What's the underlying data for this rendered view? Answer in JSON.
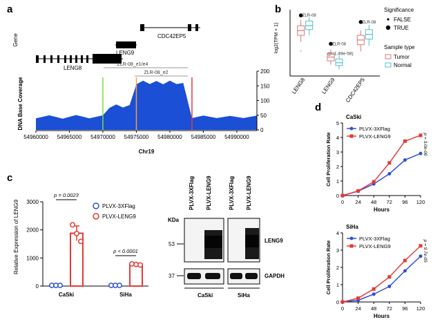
{
  "panels": {
    "a": {
      "letter": "a",
      "track_labels": {
        "gene": "Gene",
        "coverage": "DNA Base Coverage"
      },
      "genes": [
        {
          "name": "LENG8"
        },
        {
          "name": "LENG9"
        },
        {
          "name": "CDC42EP5"
        }
      ],
      "feature_labels": {
        "outer": "ZLR-08_e1/e4",
        "inner": "ZLR-08_e2"
      },
      "chart_data": {
        "type": "area",
        "xlabel": "Chr19",
        "ylabel": "DNA Base Coverage",
        "x_ticks": [
          54960000,
          54965000,
          54970000,
          54975000,
          54980000,
          54985000,
          54990000
        ],
        "x_tick_labels": [
          "54960000",
          "54965000",
          "54970000",
          "54975000",
          "54980000",
          "54985000",
          "54990000"
        ],
        "xlim": [
          54960000,
          54993000
        ],
        "ylim": [
          0,
          200
        ],
        "y_ticks": [
          0,
          50,
          100,
          150,
          200
        ],
        "y_tick_labels": [
          "0",
          "50",
          "100",
          "150",
          "200"
        ],
        "marker_lines": [
          {
            "x": 54970000,
            "color": "#7ddc3a"
          },
          {
            "x": 54975000,
            "color": "#f5a23c"
          },
          {
            "x": 54983300,
            "color": "#e23b3b"
          }
        ],
        "coverage": {
          "x": [
            54960000,
            54962000,
            54964000,
            54966000,
            54968000,
            54970000,
            54971000,
            54972000,
            54973000,
            54974000,
            54975000,
            54976000,
            54977000,
            54978000,
            54979000,
            54980000,
            54981000,
            54982000,
            54983300,
            54985000,
            54987000,
            54989000,
            54991000,
            54993000
          ],
          "y": [
            44,
            45,
            43,
            46,
            44,
            45,
            80,
            82,
            81,
            80,
            160,
            163,
            161,
            162,
            160,
            163,
            161,
            155,
            45,
            44,
            45,
            43,
            45,
            44
          ]
        },
        "fill_color": "#1a4fd6"
      }
    },
    "b": {
      "letter": "b",
      "chart_data": {
        "type": "box",
        "ylabel": "log2(TPM + 1)",
        "categories": [
          "LENG8",
          "LENG9",
          "CDC42EP5"
        ],
        "series": [
          {
            "name": "Tumor",
            "color": "#e57373",
            "boxes": [
              {
                "q1": 5.3,
                "med": 5.8,
                "q3": 6.3,
                "lo": 4.6,
                "hi": 6.9
              },
              {
                "q1": 2.6,
                "med": 3.0,
                "q3": 3.4,
                "lo": 2.2,
                "hi": 3.8
              },
              {
                "q1": 4.3,
                "med": 4.8,
                "q3": 5.3,
                "lo": 3.6,
                "hi": 5.8
              }
            ],
            "outliers": [
              {
                "cat": 0,
                "y": 3.6
              }
            ]
          },
          {
            "name": "Normal",
            "color": "#4cc3cc",
            "boxes": [
              {
                "q1": 5.9,
                "med": 6.3,
                "q3": 6.8,
                "lo": 5.3,
                "hi": 7.2
              },
              {
                "q1": 2.1,
                "med": 2.4,
                "q3": 2.8,
                "lo": 1.7,
                "hi": 3.2
              },
              {
                "q1": 4.9,
                "med": 5.4,
                "q3": 5.9,
                "lo": 4.2,
                "hi": 6.4
              }
            ],
            "outliers": []
          }
        ],
        "ylim": [
          1,
          8
        ],
        "significance_points": [
          {
            "cat": 0,
            "y": 7.4
          },
          {
            "cat": 1,
            "y": 4.4
          },
          {
            "cat": 2,
            "y": 6.7
          }
        ],
        "annotations": [
          {
            "cat": 0,
            "text": "ZLR-08"
          },
          {
            "cat": 1,
            "text": "ZLR-08",
            "sub": "(p=1.49e-58)"
          },
          {
            "cat": 2,
            "text": "ZLR-08"
          }
        ],
        "legend": {
          "significance_title": "Significance",
          "significance": [
            "FALSE",
            "TRUE"
          ],
          "sample_title": "Sample type",
          "samples": [
            "Tumor",
            "Normal"
          ]
        }
      }
    },
    "c": {
      "letter": "c",
      "chart_data": {
        "type": "bar",
        "ylabel": "Relative Expression of LENG9",
        "categories": [
          "CaSki",
          "SiHa"
        ],
        "ylim": [
          0,
          3000
        ],
        "y_ticks": [
          0,
          1000,
          2000,
          3000
        ],
        "y_tick_labels": [
          "0",
          "1000",
          "2000",
          "3000"
        ],
        "series": [
          {
            "name": "PLVX-3XFlag",
            "color": "#2f4fd8",
            "values": [
              1,
              1
            ],
            "points": [
              [
                1,
                1,
                1
              ],
              [
                1,
                1,
                1
              ]
            ],
            "sem": [
              0,
              0
            ]
          },
          {
            "name": "PLVX-LENG9",
            "color": "#e53935",
            "values": [
              1880,
              770
            ],
            "points": [
              [
                2180,
                1870,
                1590
              ],
              [
                790,
                770,
                750
              ]
            ],
            "sem": [
              260,
              25
            ]
          }
        ],
        "pvalues": [
          "p = 0.0023",
          "p < 0.0001"
        ]
      },
      "blot": {
        "kda_label": "KDa",
        "lane_labels": [
          "PLVX-3XFlag",
          "PLVX-LENG9",
          "PLVX-3XFlag",
          "PLVX-LENG9"
        ],
        "markers": [
          "53",
          "37"
        ],
        "bands": [
          "LENG9",
          "GAPDH"
        ],
        "groups": [
          "CaSki",
          "SiHa"
        ]
      }
    },
    "d": {
      "letter": "d",
      "charts": [
        {
          "type": "line",
          "title": "CaSki",
          "xlabel": "Hours",
          "ylabel": "Cell Proliferation Rate",
          "x": [
            0,
            24,
            48,
            72,
            96,
            120
          ],
          "xlim": [
            0,
            120
          ],
          "ylim": [
            0,
            5
          ],
          "y_ticks": [
            0,
            1,
            2,
            3,
            4,
            5
          ],
          "series": [
            {
              "name": "PLVX-3XFlag",
              "color": "#2f4fd8",
              "values": [
                0.0,
                0.3,
                0.8,
                1.5,
                2.45,
                2.9
              ]
            },
            {
              "name": "PLVX-LENG9",
              "color": "#e53935",
              "values": [
                0.0,
                0.32,
                0.95,
                2.25,
                3.75,
                4.15
              ]
            }
          ],
          "pvalue": "p = 3.0e-06"
        },
        {
          "type": "line",
          "title": "SiHa",
          "xlabel": "Hours",
          "ylabel": "Cell Proliferation Rate",
          "x": [
            0,
            24,
            48,
            72,
            96,
            120
          ],
          "xlim": [
            0,
            120
          ],
          "ylim": [
            0,
            4
          ],
          "y_ticks": [
            0,
            1,
            2,
            3,
            4
          ],
          "series": [
            {
              "name": "PLVX-3XFlag",
              "color": "#2f4fd8",
              "values": [
                0.0,
                0.1,
                0.45,
                0.9,
                1.8,
                2.65
              ]
            },
            {
              "name": "PLVX-LENG9",
              "color": "#e53935",
              "values": [
                0.0,
                0.22,
                0.75,
                1.45,
                2.4,
                3.25
              ]
            }
          ],
          "pvalue": "p = 9.7e-05"
        }
      ]
    }
  }
}
